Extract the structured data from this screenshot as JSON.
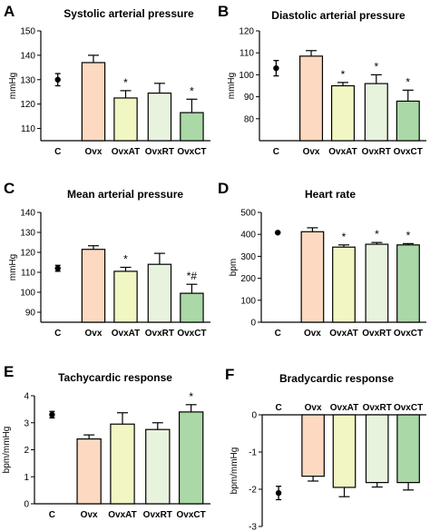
{
  "chart_data": [
    {
      "panel": "A",
      "title": "Systolic arterial pressure",
      "type": "bar",
      "ylabel": "mmHg",
      "ylim": [
        105,
        150
      ],
      "yticks": [
        110,
        120,
        130,
        140,
        150
      ],
      "categories": [
        "C",
        "Ovx",
        "OvxAT",
        "OvxRT",
        "OvxCT"
      ],
      "values": [
        130,
        137,
        122.5,
        124.5,
        116.5
      ],
      "errors": [
        2.5,
        3,
        3,
        4,
        5.5
      ],
      "annotations": [
        "",
        "",
        "*",
        "",
        "*"
      ],
      "control_as_point": true
    },
    {
      "panel": "B",
      "title": "Diastolic arterial pressure",
      "type": "bar",
      "ylabel": "mmHg",
      "ylim": [
        70,
        120
      ],
      "yticks": [
        80,
        90,
        100,
        110,
        120
      ],
      "categories": [
        "C",
        "Ovx",
        "OvxAT",
        "OvxRT",
        "OvxCT"
      ],
      "values": [
        103,
        108.5,
        95,
        96,
        88
      ],
      "errors": [
        3.5,
        2.5,
        1.5,
        4,
        5
      ],
      "annotations": [
        "",
        "",
        "*",
        "*",
        "*"
      ],
      "control_as_point": true
    },
    {
      "panel": "C",
      "title": "Mean arterial pressure",
      "type": "bar",
      "ylabel": "mmHg",
      "ylim": [
        85,
        140
      ],
      "yticks": [
        90,
        100,
        110,
        120,
        130,
        140
      ],
      "categories": [
        "C",
        "Ovx",
        "OvxAT",
        "OvxRT",
        "OvxCT"
      ],
      "values": [
        112,
        121.5,
        110.5,
        114,
        99.5
      ],
      "errors": [
        1.5,
        1.8,
        2,
        5.5,
        4.5
      ],
      "annotations": [
        "",
        "",
        "*",
        "",
        "*#"
      ],
      "control_as_point": true
    },
    {
      "panel": "D",
      "title": "Heart rate",
      "type": "bar",
      "ylabel": "bpm",
      "ylim": [
        0,
        500
      ],
      "yticks": [
        0,
        100,
        200,
        300,
        400,
        500
      ],
      "categories": [
        "C",
        "Ovx",
        "OvxAT",
        "OvxRT",
        "OvxCT"
      ],
      "values": [
        408,
        412,
        342,
        355,
        352
      ],
      "errors": [
        3,
        18,
        10,
        8,
        6
      ],
      "annotations": [
        "",
        "",
        "*",
        "*",
        "*"
      ],
      "control_as_point": true
    },
    {
      "panel": "E",
      "title": "Tachycardic response",
      "type": "bar",
      "ylabel": "bpm/mmHg",
      "ylim": [
        0,
        4
      ],
      "yticks": [
        0,
        1,
        2,
        3,
        4
      ],
      "categories": [
        "C",
        "Ovx",
        "OvxAT",
        "OvxRT",
        "OvxCT"
      ],
      "values": [
        3.3,
        2.4,
        2.95,
        2.75,
        3.4
      ],
      "errors": [
        0.12,
        0.15,
        0.42,
        0.25,
        0.27
      ],
      "annotations": [
        "",
        "",
        "",
        "",
        "*"
      ],
      "control_as_point": true
    },
    {
      "panel": "F",
      "title": "Bradycardic response",
      "type": "bar",
      "ylabel": "bpm/mmHg",
      "ylim": [
        -3,
        0
      ],
      "yticks": [
        0,
        -1,
        -2,
        -3
      ],
      "categories": [
        "C",
        "Ovx",
        "OvxAT",
        "OvxRT",
        "OvxCT"
      ],
      "values": [
        -2.1,
        -1.65,
        -1.95,
        -1.82,
        -1.82
      ],
      "errors": [
        0.18,
        0.13,
        0.25,
        0.12,
        0.2
      ],
      "annotations": [
        "",
        "",
        "",
        "",
        ""
      ],
      "control_as_point": true
    }
  ],
  "colors": {
    "bar_fills": [
      "#000000",
      "#fcd9c0",
      "#f2f6c3",
      "#e7f3dc",
      "#aad8a6"
    ],
    "bar_stroke": "#000000"
  }
}
